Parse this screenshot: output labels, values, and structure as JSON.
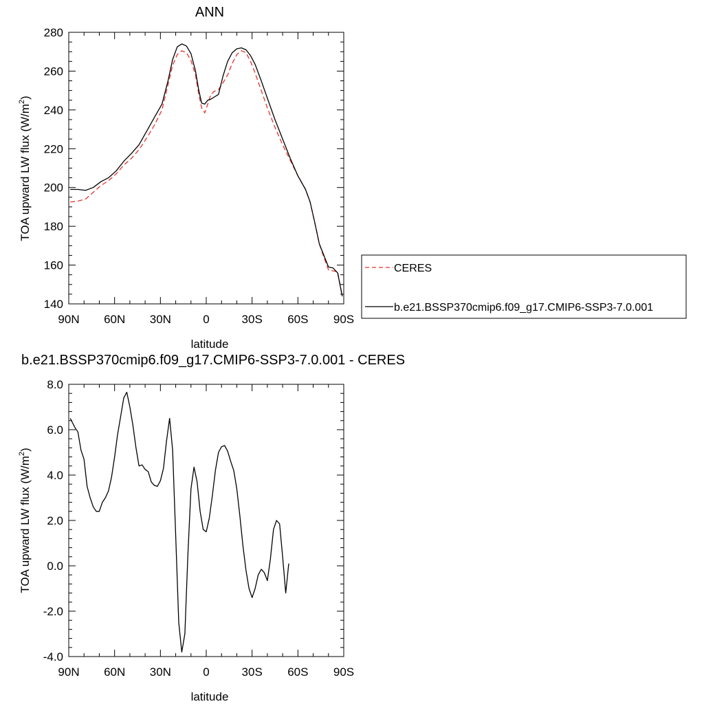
{
  "chart_data": [
    {
      "type": "line",
      "title": "ANN",
      "xlabel": "latitude",
      "ylabel": "TOA upward LW flux (W/m",
      "ylabel_sup": "2",
      "ylabel_close": ")",
      "xlim": [
        90,
        -90
      ],
      "ylim": [
        140,
        280
      ],
      "xticks": [
        90,
        60,
        30,
        0,
        -30,
        -60,
        -90
      ],
      "xtick_labels": [
        "90N",
        "60N",
        "30N",
        "0",
        "30S",
        "60S",
        "90S"
      ],
      "yticks": [
        140,
        160,
        180,
        200,
        220,
        240,
        260,
        280
      ],
      "ytick_labels": [
        "140",
        "160",
        "180",
        "200",
        "220",
        "240",
        "260",
        "280"
      ],
      "legend_placement": "right",
      "series": [
        {
          "name": "CERES",
          "color": "#e8302a",
          "dash": "dashed",
          "points": [
            [
              89,
              192.5
            ],
            [
              84,
              193.0
            ],
            [
              79,
              194.0
            ],
            [
              74,
              197.5
            ],
            [
              69,
              201.0
            ],
            [
              64,
              203.5
            ],
            [
              59,
              207.0
            ],
            [
              54,
              211.5
            ],
            [
              49,
              215.0
            ],
            [
              44,
              219.5
            ],
            [
              39,
              225.5
            ],
            [
              34,
              232.0
            ],
            [
              29,
              240.0
            ],
            [
              25,
              253.0
            ],
            [
              22,
              263.0
            ],
            [
              19,
              268.5
            ],
            [
              16,
              270.5
            ],
            [
              13,
              269.5
            ],
            [
              10,
              265.5
            ],
            [
              7,
              258.0
            ],
            [
              5,
              248.5
            ],
            [
              3,
              241.0
            ],
            [
              1,
              238.5
            ],
            [
              -1,
              243.0
            ],
            [
              -3,
              248.0
            ],
            [
              -5,
              249.5
            ],
            [
              -8,
              250.5
            ],
            [
              -11,
              254.0
            ],
            [
              -14,
              258.0
            ],
            [
              -17,
              264.0
            ],
            [
              -20,
              268.5
            ],
            [
              -23,
              270.5
            ],
            [
              -26,
              269.5
            ],
            [
              -29,
              265.0
            ],
            [
              -32,
              259.0
            ],
            [
              -36,
              250.0
            ],
            [
              -40,
              241.0
            ],
            [
              -45,
              231.0
            ],
            [
              -50,
              222.0
            ],
            [
              -55,
              214.0
            ],
            [
              -60,
              206.0
            ],
            [
              -65,
              199.0
            ],
            [
              -68,
              192.5
            ],
            [
              -71,
              182.0
            ],
            [
              -74,
              171.0
            ],
            [
              -77,
              164.0
            ],
            [
              -80,
              157.5
            ],
            [
              -83,
              157.0
            ],
            [
              -86,
              156.5
            ],
            [
              -89,
              144.0
            ]
          ]
        },
        {
          "name": "b.e21.BSSP370cmip6.f09_g17.CMIP6-SSP3-7.0.001",
          "color": "#000000",
          "dash": "solid",
          "points": [
            [
              89,
              199.0
            ],
            [
              84,
              199.0
            ],
            [
              79,
              198.5
            ],
            [
              74,
              200.0
            ],
            [
              69,
              203.0
            ],
            [
              64,
              205.0
            ],
            [
              59,
              208.5
            ],
            [
              54,
              213.5
            ],
            [
              49,
              217.5
            ],
            [
              44,
              222.0
            ],
            [
              39,
              229.0
            ],
            [
              34,
              236.0
            ],
            [
              29,
              243.0
            ],
            [
              25,
              255.0
            ],
            [
              22,
              266.0
            ],
            [
              19,
              272.5
            ],
            [
              16,
              274.0
            ],
            [
              13,
              273.0
            ],
            [
              10,
              269.0
            ],
            [
              7,
              260.0
            ],
            [
              5,
              250.5
            ],
            [
              3,
              243.5
            ],
            [
              1,
              243.0
            ],
            [
              -1,
              245.0
            ],
            [
              -3,
              245.5
            ],
            [
              -5,
              246.5
            ],
            [
              -8,
              248.0
            ],
            [
              -11,
              257.5
            ],
            [
              -14,
              265.0
            ],
            [
              -17,
              269.5
            ],
            [
              -20,
              271.5
            ],
            [
              -23,
              272.0
            ],
            [
              -26,
              271.0
            ],
            [
              -29,
              268.0
            ],
            [
              -32,
              263.5
            ],
            [
              -36,
              255.0
            ],
            [
              -40,
              246.0
            ],
            [
              -45,
              235.0
            ],
            [
              -50,
              225.0
            ],
            [
              -55,
              215.0
            ],
            [
              -60,
              206.0
            ],
            [
              -65,
              199.0
            ],
            [
              -68,
              192.5
            ],
            [
              -71,
              182.0
            ],
            [
              -74,
              171.0
            ],
            [
              -77,
              165.0
            ],
            [
              -80,
              159.0
            ],
            [
              -83,
              158.5
            ],
            [
              -86,
              156.0
            ],
            [
              -89,
              144.0
            ]
          ]
        }
      ]
    },
    {
      "type": "line",
      "title": "b.e21.BSSP370cmip6.f09_g17.CMIP6-SSP3-7.0.001 - CERES",
      "xlabel": "latitude",
      "ylabel": "TOA upward LW flux (W/m",
      "ylabel_sup": "2",
      "ylabel_close": ")",
      "xlim": [
        90,
        -90
      ],
      "ylim": [
        -4.0,
        8.0
      ],
      "xticks": [
        90,
        60,
        30,
        0,
        -30,
        -60,
        -90
      ],
      "xtick_labels": [
        "90N",
        "60N",
        "30N",
        "0",
        "30S",
        "60S",
        "90S"
      ],
      "yticks": [
        -4.0,
        -2.0,
        0.0,
        2.0,
        4.0,
        6.0,
        8.0
      ],
      "ytick_labels": [
        "-4.0",
        "-2.0",
        "0.0",
        "2.0",
        "4.0",
        "6.0",
        "8.0"
      ],
      "series": [
        {
          "color": "#000000",
          "dash": "solid",
          "points": [
            [
              89,
              6.5
            ],
            [
              86,
              6.1
            ],
            [
              84,
              5.9
            ],
            [
              82,
              5.1
            ],
            [
              80,
              4.7
            ],
            [
              78,
              3.5
            ],
            [
              76,
              3.0
            ],
            [
              74,
              2.6
            ],
            [
              72,
              2.4
            ],
            [
              70,
              2.4
            ],
            [
              68,
              2.8
            ],
            [
              66,
              3.0
            ],
            [
              64,
              3.3
            ],
            [
              62,
              3.9
            ],
            [
              60,
              4.8
            ],
            [
              58,
              5.8
            ],
            [
              56,
              6.6
            ],
            [
              54,
              7.4
            ],
            [
              52,
              7.65
            ],
            [
              50,
              7.0
            ],
            [
              48,
              6.2
            ],
            [
              46,
              5.2
            ],
            [
              44,
              4.4
            ],
            [
              42,
              4.45
            ],
            [
              40,
              4.25
            ],
            [
              38,
              4.15
            ],
            [
              36,
              3.7
            ],
            [
              34,
              3.55
            ],
            [
              32,
              3.5
            ],
            [
              30,
              3.75
            ],
            [
              28,
              4.3
            ],
            [
              26,
              5.5
            ],
            [
              24,
              6.5
            ],
            [
              22,
              5.1
            ],
            [
              20,
              1.3
            ],
            [
              18,
              -2.5
            ],
            [
              16,
              -3.8
            ],
            [
              14,
              -3.0
            ],
            [
              12,
              0.5
            ],
            [
              10,
              3.4
            ],
            [
              8,
              4.35
            ],
            [
              6,
              3.7
            ],
            [
              4,
              2.4
            ],
            [
              2,
              1.6
            ],
            [
              0,
              1.5
            ],
            [
              -2,
              2.1
            ],
            [
              -4,
              3.1
            ],
            [
              -6,
              4.2
            ],
            [
              -8,
              5.0
            ],
            [
              -10,
              5.25
            ],
            [
              -12,
              5.3
            ],
            [
              -14,
              5.05
            ],
            [
              -16,
              4.6
            ],
            [
              -18,
              4.2
            ],
            [
              -20,
              3.4
            ],
            [
              -22,
              2.2
            ],
            [
              -24,
              0.9
            ],
            [
              -26,
              -0.2
            ],
            [
              -28,
              -1.0
            ],
            [
              -30,
              -1.4
            ],
            [
              -32,
              -1.0
            ],
            [
              -34,
              -0.4
            ],
            [
              -36,
              -0.15
            ],
            [
              -38,
              -0.3
            ],
            [
              -40,
              -0.65
            ],
            [
              -42,
              0.3
            ],
            [
              -44,
              1.6
            ],
            [
              -46,
              2.0
            ],
            [
              -48,
              1.85
            ],
            [
              -50,
              0.4
            ],
            [
              -52,
              -1.2
            ],
            [
              -54,
              0.1
            ]
          ]
        }
      ]
    }
  ]
}
